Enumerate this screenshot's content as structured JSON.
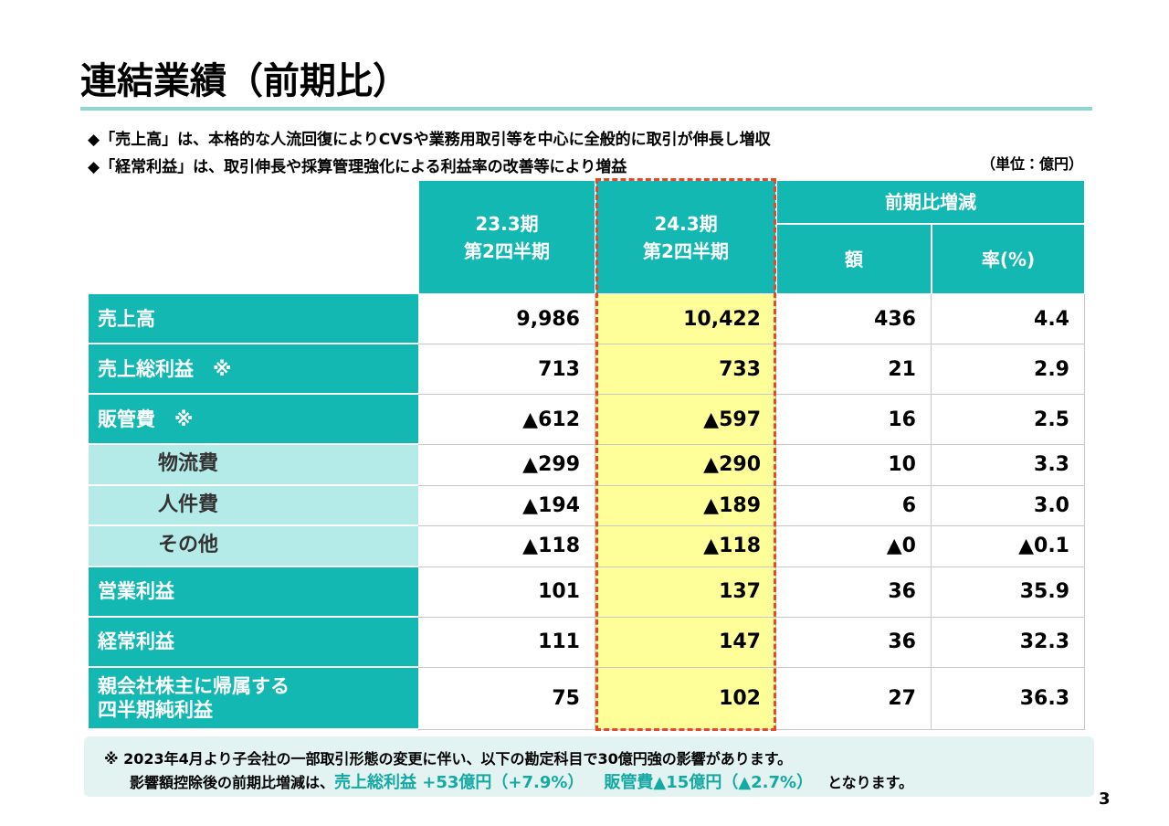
{
  "header": {
    "title": "連結業績（前期比）",
    "unit": "（単位：億円）"
  },
  "bullets": [
    "◆「売上高」は、本格的な人流回復によりCVSや業務用取引等を中心に全般的に取引が伸長し増収",
    "◆「経常利益」は、取引伸長や採算管理強化による利益率の改善等により増益"
  ],
  "table": {
    "columns": [
      [
        "23.3期",
        "第2四半期"
      ],
      [
        "24.3期",
        "第2四半期"
      ]
    ],
    "change_header": "前期比増減",
    "change_columns": [
      "額",
      "率(%)"
    ],
    "rows": [
      {
        "label": [
          "売上高"
        ],
        "sub": false,
        "values": [
          "9,986",
          "10,422",
          "436",
          "4.4"
        ]
      },
      {
        "label": [
          "売上総利益　※"
        ],
        "sub": false,
        "values": [
          "713",
          "733",
          "21",
          "2.9"
        ]
      },
      {
        "label": [
          "販管費　※"
        ],
        "sub": false,
        "values": [
          "▲612",
          "▲597",
          "16",
          "2.5"
        ]
      },
      {
        "label": [
          "物流費"
        ],
        "sub": true,
        "values": [
          "▲299",
          "▲290",
          "10",
          "3.3"
        ]
      },
      {
        "label": [
          "人件費"
        ],
        "sub": true,
        "values": [
          "▲194",
          "▲189",
          "6",
          "3.0"
        ]
      },
      {
        "label": [
          "その他"
        ],
        "sub": true,
        "values": [
          "▲118",
          "▲118",
          "▲0",
          "▲0.1"
        ]
      },
      {
        "label": [
          "営業利益"
        ],
        "sub": false,
        "values": [
          "101",
          "137",
          "36",
          "35.9"
        ]
      },
      {
        "label": [
          "経常利益"
        ],
        "sub": false,
        "values": [
          "111",
          "147",
          "36",
          "32.3"
        ]
      },
      {
        "label": [
          "親会社株主に帰属する",
          "四半期純利益"
        ],
        "sub": false,
        "values": [
          "75",
          "102",
          "27",
          "36.3"
        ]
      }
    ]
  },
  "footnote": {
    "line1": "※ 2023年4月より子会社の一部取引形態の変更に伴い、以下の勘定科目で30億円強の影響があります。",
    "line2_prefix": "影響額控除後の前期比増減は、",
    "highlight1": "売上総利益 +53億円（+7.9%）",
    "highlight2": "販管費▲15億円（▲2.7%）",
    "line2_suffix": "となります。"
  },
  "page_number": "3"
}
